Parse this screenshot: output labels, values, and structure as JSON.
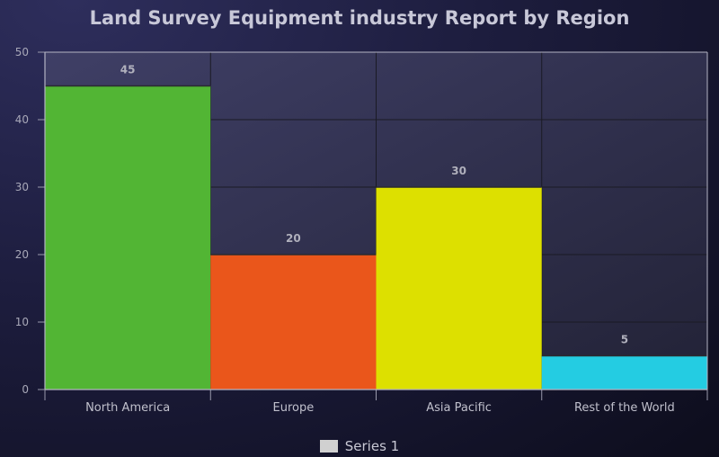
{
  "chart_data": {
    "type": "bar",
    "title": "Land Survey Equipment industry Report by Region",
    "categories": [
      "North America",
      "Europe",
      "Asia Pacific",
      "Rest of the World"
    ],
    "series": [
      {
        "name": "Series 1",
        "values": [
          45,
          20,
          30,
          5
        ]
      }
    ],
    "colors": [
      "#52b534",
      "#ea561b",
      "#dde000",
      "#24cce2"
    ],
    "data_label_format": "integer",
    "ylim": [
      0,
      50
    ],
    "yticks": [
      0,
      10,
      20,
      30,
      40,
      50
    ],
    "xlabel": "",
    "ylabel": "",
    "grid": true,
    "legend_position": "bottom-center",
    "legend_swatch_color": "#d0d0d0"
  }
}
